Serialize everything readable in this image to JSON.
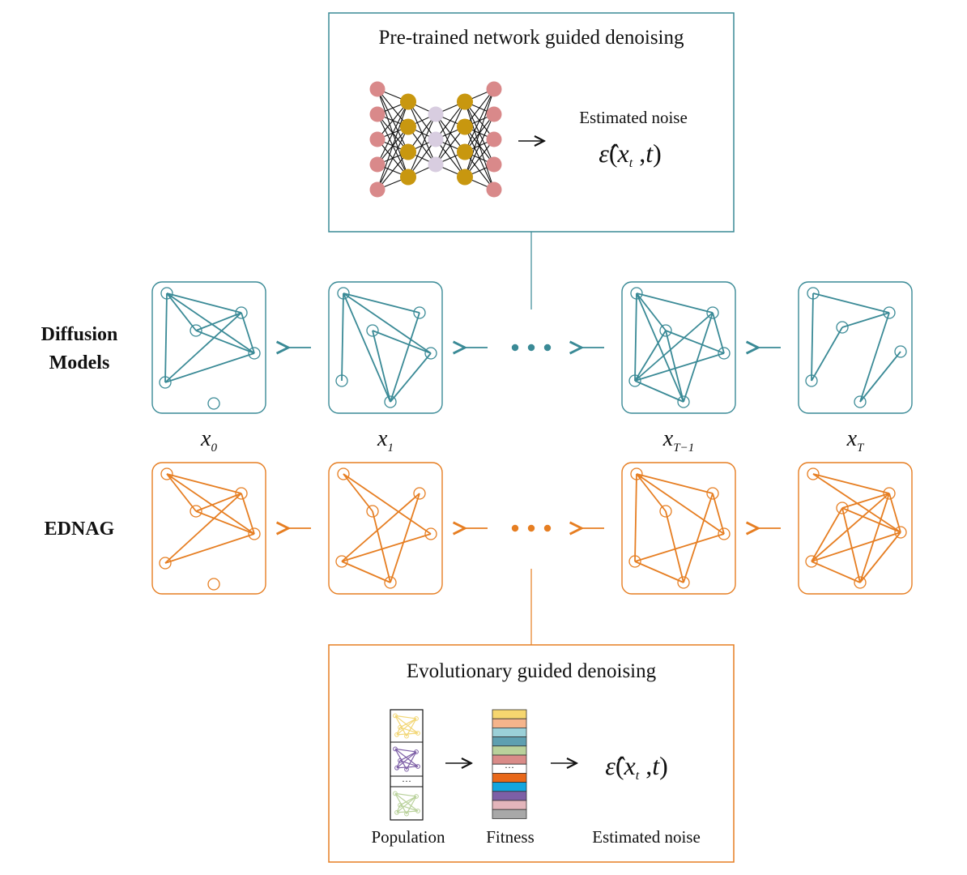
{
  "colors": {
    "diffusion": "#3a8a96",
    "ednag": "#e67e22",
    "input_node": "#d9898a",
    "hidden_node": "#c8970f",
    "latent_node": "#d8cde0"
  },
  "top_box": {
    "title": "Pre-trained network guided denoising",
    "estimated_noise": "Estimated noise",
    "formula": "ε̂(xt ,t)"
  },
  "bottom_box": {
    "title": "Evolutionary guided denoising",
    "population_label": "Population",
    "fitness_label": "Fitness",
    "estimated_noise_label": "Estimated noise",
    "formula": "ε̂(xt ,t)",
    "population_ellipsis": "···",
    "fitness_ellipsis": "···",
    "population_colors": [
      "#f2d675",
      "#7d5fa6",
      "#b9d19b"
    ],
    "fitness_colors": [
      "#f6d66f",
      "#f5b48b",
      "#9bd0d8",
      "#5e9fb0",
      "#b9d19b",
      "#d98b88",
      "",
      "#e8681a",
      "#14a6de",
      "#7d5fa6",
      "#e3b5bb",
      "#a8a8a8"
    ]
  },
  "rows": {
    "diffusion_label": [
      "Diffusion",
      "Models"
    ],
    "ednag_label": "EDNAG"
  },
  "step_labels": [
    {
      "base": "x",
      "sub": "0"
    },
    {
      "base": "x",
      "sub": "1"
    },
    {
      "base": "x",
      "sub": "T−1"
    },
    {
      "base": "x",
      "sub": "T"
    }
  ],
  "arrow_glyph": "←",
  "right_arrow_glyph": "→",
  "graphs": {
    "diffusion": [
      {
        "edges": [
          [
            0,
            3
          ],
          [
            0,
            2
          ],
          [
            0,
            4
          ],
          [
            0,
            1
          ],
          [
            1,
            4
          ],
          [
            1,
            3
          ],
          [
            2,
            3
          ],
          [
            2,
            4
          ],
          [
            3,
            4
          ]
        ]
      },
      {
        "edges": [
          [
            0,
            4
          ],
          [
            0,
            2
          ],
          [
            0,
            5
          ],
          [
            1,
            3
          ],
          [
            1,
            5
          ],
          [
            2,
            5
          ],
          [
            3,
            5
          ],
          [
            0,
            3
          ]
        ]
      },
      {
        "edges": [
          [
            0,
            1
          ],
          [
            0,
            2
          ],
          [
            0,
            4
          ],
          [
            0,
            5
          ],
          [
            1,
            4
          ],
          [
            1,
            5
          ],
          [
            2,
            3
          ],
          [
            2,
            5
          ],
          [
            3,
            4
          ],
          [
            4,
            5
          ],
          [
            1,
            3
          ],
          [
            2,
            4
          ]
        ]
      },
      {
        "edges": [
          [
            0,
            1
          ],
          [
            0,
            4
          ],
          [
            1,
            5
          ],
          [
            1,
            2
          ],
          [
            2,
            4
          ],
          [
            3,
            5
          ]
        ]
      }
    ],
    "ednag": [
      {
        "edges": [
          [
            0,
            2
          ],
          [
            0,
            3
          ],
          [
            0,
            4
          ],
          [
            1,
            4
          ],
          [
            1,
            3
          ],
          [
            2,
            4
          ],
          [
            2,
            3
          ],
          [
            3,
            4
          ]
        ]
      },
      {
        "edges": [
          [
            0,
            1
          ],
          [
            0,
            3
          ],
          [
            1,
            5
          ],
          [
            2,
            4
          ],
          [
            2,
            5
          ],
          [
            3,
            4
          ],
          [
            4,
            5
          ]
        ]
      },
      {
        "edges": [
          [
            0,
            1
          ],
          [
            0,
            2
          ],
          [
            0,
            3
          ],
          [
            0,
            4
          ],
          [
            1,
            5
          ],
          [
            2,
            3
          ],
          [
            2,
            5
          ],
          [
            3,
            4
          ],
          [
            4,
            5
          ]
        ]
      },
      {
        "edges": [
          [
            0,
            1
          ],
          [
            1,
            2
          ],
          [
            1,
            3
          ],
          [
            1,
            4
          ],
          [
            1,
            5
          ],
          [
            2,
            3
          ],
          [
            2,
            4
          ],
          [
            2,
            5
          ],
          [
            3,
            4
          ],
          [
            3,
            5
          ],
          [
            4,
            5
          ],
          [
            0,
            3
          ]
        ]
      }
    ]
  }
}
